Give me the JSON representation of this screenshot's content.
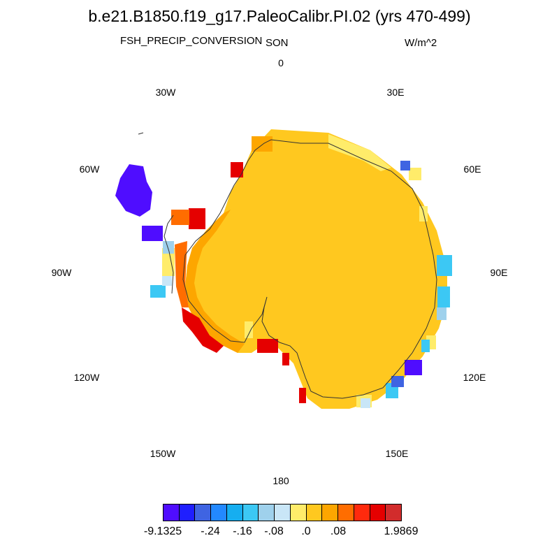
{
  "header": {
    "title": "b.e21.B1850.f19_g17.PaleoCalibr.PI.02 (yrs 470-499)",
    "variable": "FSH_PRECIP_CONVERSION",
    "season": "SON",
    "units": "W/m^2"
  },
  "longitude_labels": {
    "lon_0": "0",
    "lon_30e": "30E",
    "lon_60e": "60E",
    "lon_90e": "90E",
    "lon_120e": "120E",
    "lon_150e": "150E",
    "lon_180": "180",
    "lon_150w": "150W",
    "lon_120w": "120W",
    "lon_90w": "90W",
    "lon_60w": "60W",
    "lon_30w": "30W"
  },
  "colorbar": {
    "colors": [
      "#4f0dff",
      "#1f1fff",
      "#3f64e2",
      "#2389ff",
      "#16aef0",
      "#3cc8f4",
      "#9fd1ec",
      "#c9e6f7",
      "#ffec6a",
      "#ffc81f",
      "#fda600",
      "#ff6d00",
      "#ff2a0d",
      "#e50000",
      "#d22c2c"
    ],
    "labels": {
      "min": "-9.1325",
      "t1": "-.24",
      "t2": "-.16",
      "t3": "-.08",
      "t4": ".0",
      "t5": ".08",
      "max": "1.9869"
    }
  },
  "map": {
    "projection": "south polar stereographic",
    "interior_color": "#ffc81f",
    "margin_colors": {
      "strong_negative": "#4f0dff",
      "negative": "#3cc8f4",
      "weak_negative": "#c9e6f7",
      "near_zero": "#ffec6a",
      "positive": "#fda600",
      "high": "#ff6d00",
      "very_high": "#e50000"
    }
  }
}
